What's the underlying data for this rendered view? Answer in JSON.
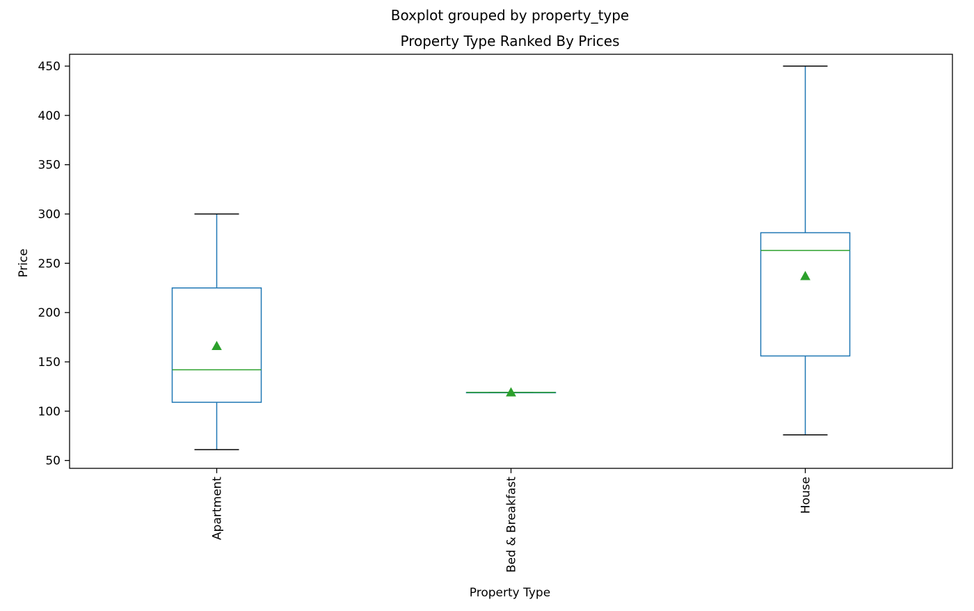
{
  "chart_data": {
    "type": "box",
    "suptitle": "Boxplot grouped by property_type",
    "title": "Property Type Ranked By Prices",
    "xlabel": "Property Type",
    "ylabel": "Price",
    "ylim": [
      42,
      462
    ],
    "yticks": [
      50,
      100,
      150,
      200,
      250,
      300,
      350,
      400,
      450
    ],
    "grid": false,
    "showmeans": true,
    "colors": {
      "box": "#1f77b4",
      "median": "#2ca02c",
      "mean": "#2ca02c",
      "cap": "#000000",
      "axes": "#000000"
    },
    "categories": [
      "Apartment",
      "Bed & Breakfast",
      "House"
    ],
    "boxes": [
      {
        "category": "Apartment",
        "whisker_low": 61,
        "q1": 109,
        "median": 142,
        "q3": 225,
        "whisker_high": 300,
        "mean": 166
      },
      {
        "category": "Bed & Breakfast",
        "whisker_low": 119,
        "q1": 119,
        "median": 119,
        "q3": 119,
        "whisker_high": 119,
        "mean": 119
      },
      {
        "category": "House",
        "whisker_low": 76,
        "q1": 156,
        "median": 263,
        "q3": 281,
        "whisker_high": 450,
        "mean": 237
      }
    ]
  }
}
